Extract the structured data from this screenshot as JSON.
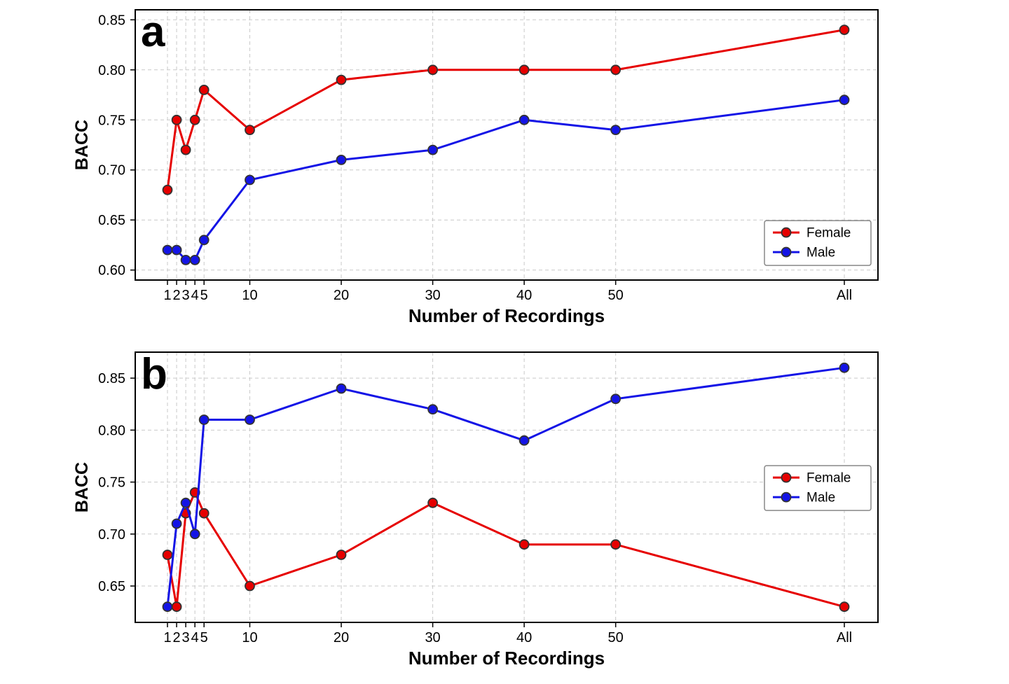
{
  "figure": {
    "background": "#ffffff",
    "grid_color": "#c9c9c9",
    "frame_color": "#000000",
    "marker_edge_color": "#333333"
  },
  "chart_data": [
    {
      "panel_label": "a",
      "type": "line",
      "title": "",
      "xlabel": "Number of Recordings",
      "ylabel": "BACC",
      "x_values": [
        1,
        2,
        3,
        4,
        5,
        10,
        20,
        30,
        40,
        50,
        75
      ],
      "x_tick_labels": [
        "1",
        "2",
        "3",
        "4",
        "5",
        "10",
        "20",
        "30",
        "40",
        "50",
        "All"
      ],
      "ylim": [
        0.59,
        0.86
      ],
      "yticks": [
        0.6,
        0.65,
        0.7,
        0.75,
        0.8,
        0.85
      ],
      "grid": true,
      "legend_position": "right",
      "legend_y_frac": 0.78,
      "series": [
        {
          "name": "Female",
          "color": "#e60000",
          "values": [
            0.68,
            0.75,
            0.72,
            0.75,
            0.78,
            0.74,
            0.79,
            0.8,
            0.8,
            0.8,
            0.84
          ]
        },
        {
          "name": "Male",
          "color": "#1414e6",
          "values": [
            0.62,
            0.62,
            0.61,
            0.61,
            0.63,
            0.69,
            0.71,
            0.72,
            0.75,
            0.74,
            0.77
          ]
        }
      ]
    },
    {
      "panel_label": "b",
      "type": "line",
      "title": "",
      "xlabel": "Number of Recordings",
      "ylabel": "BACC",
      "x_values": [
        1,
        2,
        3,
        4,
        5,
        10,
        20,
        30,
        40,
        50,
        75
      ],
      "x_tick_labels": [
        "1",
        "2",
        "3",
        "4",
        "5",
        "10",
        "20",
        "30",
        "40",
        "50",
        "All"
      ],
      "ylim": [
        0.615,
        0.875
      ],
      "yticks": [
        0.65,
        0.7,
        0.75,
        0.8,
        0.85
      ],
      "grid": true,
      "legend_position": "right",
      "legend_y_frac": 0.42,
      "series": [
        {
          "name": "Female",
          "color": "#e60000",
          "values": [
            0.68,
            0.63,
            0.72,
            0.74,
            0.72,
            0.65,
            0.68,
            0.73,
            0.69,
            0.69,
            0.63
          ]
        },
        {
          "name": "Male",
          "color": "#1414e6",
          "values": [
            0.63,
            0.71,
            0.73,
            0.7,
            0.81,
            0.81,
            0.84,
            0.82,
            0.79,
            0.83,
            0.86
          ]
        }
      ]
    }
  ]
}
